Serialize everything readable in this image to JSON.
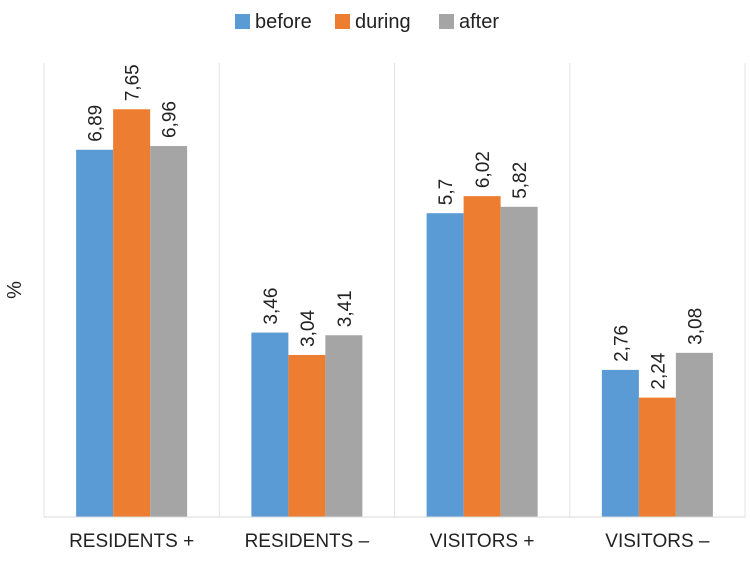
{
  "chart_data": {
    "type": "bar",
    "title": "",
    "xlabel": "",
    "ylabel": "%",
    "categories": [
      "RESIDENTS +",
      "RESIDENTS –",
      "VISITORS +",
      "VISITORS –"
    ],
    "series": [
      {
        "name": "before",
        "color": "#5B9BD5",
        "values": [
          6.89,
          3.46,
          5.7,
          2.76
        ],
        "labels": [
          "6,89",
          "3,46",
          "5,7",
          "2,76"
        ]
      },
      {
        "name": "during",
        "color": "#ED7D31",
        "values": [
          7.65,
          3.04,
          6.02,
          2.24
        ],
        "labels": [
          "7,65",
          "3,04",
          "6,02",
          "2,24"
        ]
      },
      {
        "name": "after",
        "color": "#A5A5A5",
        "values": [
          6.96,
          3.41,
          5.82,
          3.08
        ],
        "labels": [
          "6,96",
          "3,41",
          "5,82",
          "3,08"
        ]
      }
    ],
    "ylim": [
      0,
      9
    ],
    "grid": false,
    "category_separators": true,
    "legend_position": "top-center"
  }
}
